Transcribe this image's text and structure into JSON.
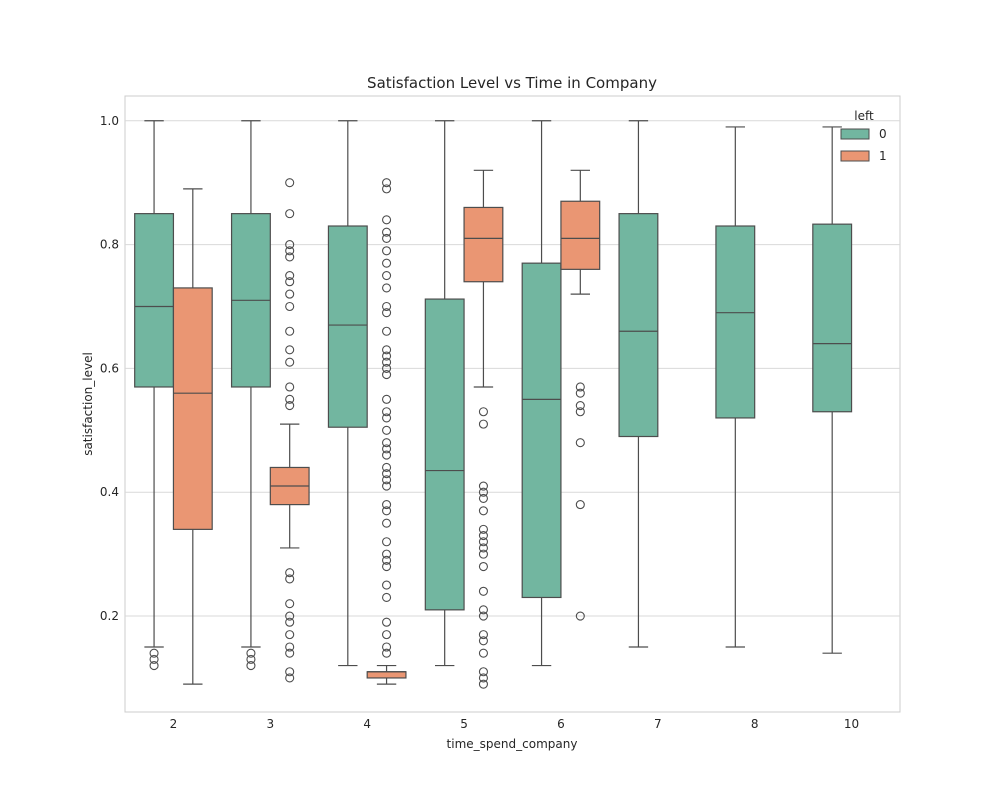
{
  "chart_data": {
    "type": "box",
    "title": "Satisfaction Level vs Time in Company",
    "xlabel": "time_spend_company",
    "ylabel": "satisfaction_level",
    "ylim": [
      0.045,
      1.04
    ],
    "yticks": [
      0.2,
      0.4,
      0.6,
      0.8,
      1.0
    ],
    "ytick_labels": [
      "0.2",
      "0.4",
      "0.6",
      "0.8",
      "1.0"
    ],
    "categories": [
      "2",
      "3",
      "4",
      "5",
      "6",
      "7",
      "8",
      "10"
    ],
    "grid": "horizontal",
    "legend": {
      "title": "left",
      "position": "top-right"
    },
    "series": [
      {
        "name": "0",
        "color": "#72b6a0",
        "boxes": [
          {
            "whislo": 0.15,
            "q1": 0.57,
            "med": 0.7,
            "q3": 0.85,
            "whishi": 1.0,
            "fliers": [
              0.12,
              0.13,
              0.14
            ]
          },
          {
            "whislo": 0.15,
            "q1": 0.57,
            "med": 0.71,
            "q3": 0.85,
            "whishi": 1.0,
            "fliers": [
              0.12,
              0.13,
              0.14
            ]
          },
          {
            "whislo": 0.12,
            "q1": 0.505,
            "med": 0.67,
            "q3": 0.83,
            "whishi": 1.0,
            "fliers": []
          },
          {
            "whislo": 0.12,
            "q1": 0.21,
            "med": 0.435,
            "q3": 0.712,
            "whishi": 1.0,
            "fliers": []
          },
          {
            "whislo": 0.12,
            "q1": 0.23,
            "med": 0.55,
            "q3": 0.77,
            "whishi": 1.0,
            "fliers": []
          },
          {
            "whislo": 0.15,
            "q1": 0.49,
            "med": 0.66,
            "q3": 0.85,
            "whishi": 1.0,
            "fliers": []
          },
          {
            "whislo": 0.15,
            "q1": 0.52,
            "med": 0.69,
            "q3": 0.83,
            "whishi": 0.99,
            "fliers": []
          },
          {
            "whislo": 0.14,
            "q1": 0.53,
            "med": 0.64,
            "q3": 0.833,
            "whishi": 0.99,
            "fliers": []
          }
        ]
      },
      {
        "name": "1",
        "color": "#ea9673",
        "boxes": [
          {
            "whislo": 0.09,
            "q1": 0.34,
            "med": 0.56,
            "q3": 0.73,
            "whishi": 0.89,
            "fliers": []
          },
          {
            "whislo": 0.31,
            "q1": 0.38,
            "med": 0.41,
            "q3": 0.44,
            "whishi": 0.51,
            "fliers": [
              0.1,
              0.11,
              0.14,
              0.15,
              0.17,
              0.19,
              0.2,
              0.22,
              0.26,
              0.27,
              0.54,
              0.55,
              0.57,
              0.61,
              0.63,
              0.66,
              0.7,
              0.72,
              0.74,
              0.75,
              0.78,
              0.79,
              0.8,
              0.85,
              0.9
            ]
          },
          {
            "whislo": 0.09,
            "q1": 0.1,
            "med": 0.11,
            "q3": 0.11,
            "whishi": 0.12,
            "fliers": [
              0.14,
              0.15,
              0.17,
              0.19,
              0.23,
              0.25,
              0.28,
              0.29,
              0.3,
              0.32,
              0.35,
              0.37,
              0.38,
              0.41,
              0.42,
              0.43,
              0.44,
              0.46,
              0.47,
              0.48,
              0.5,
              0.52,
              0.53,
              0.55,
              0.59,
              0.6,
              0.61,
              0.62,
              0.63,
              0.66,
              0.69,
              0.7,
              0.73,
              0.75,
              0.77,
              0.79,
              0.81,
              0.82,
              0.84,
              0.89,
              0.9
            ]
          },
          {
            "whislo": 0.57,
            "q1": 0.74,
            "med": 0.81,
            "q3": 0.86,
            "whishi": 0.92,
            "fliers": [
              0.09,
              0.1,
              0.11,
              0.14,
              0.16,
              0.17,
              0.2,
              0.21,
              0.24,
              0.28,
              0.3,
              0.31,
              0.32,
              0.33,
              0.34,
              0.37,
              0.39,
              0.4,
              0.41,
              0.51,
              0.53
            ]
          },
          {
            "whislo": 0.72,
            "q1": 0.76,
            "med": 0.81,
            "q3": 0.87,
            "whishi": 0.92,
            "fliers": [
              0.2,
              0.38,
              0.48,
              0.53,
              0.54,
              0.56,
              0.57
            ]
          },
          null,
          null,
          null
        ]
      }
    ]
  }
}
